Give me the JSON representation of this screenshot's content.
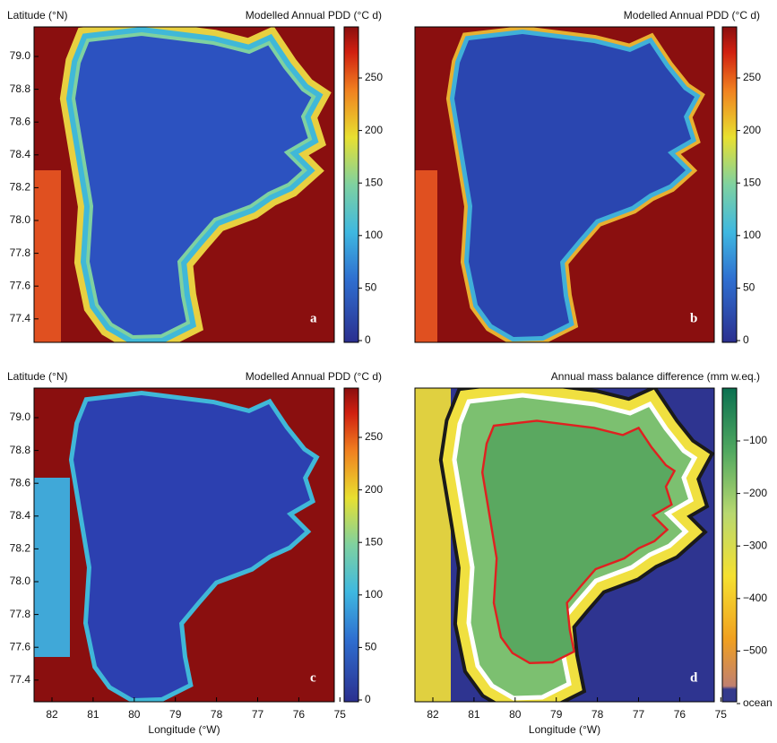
{
  "panels": [
    {
      "y_label": "Latitude (°N)",
      "title": "Modelled Annual PDD (°C d)",
      "letter": "a",
      "lat_ticks": [
        "79.0",
        "78.8",
        "78.6",
        "78.4",
        "78.2",
        "78.0",
        "77.8",
        "77.6",
        "77.4"
      ],
      "colorbar_ticks": [
        "0",
        "50",
        "100",
        "150",
        "200",
        "250"
      ]
    },
    {
      "title": "Modelled Annual PDD (°C d)",
      "letter": "b",
      "colorbar_ticks": [
        "0",
        "50",
        "100",
        "150",
        "200",
        "250"
      ]
    },
    {
      "y_label": "Latitude (°N)",
      "title": "Modelled Annual PDD (°C d)",
      "letter": "c",
      "lat_ticks": [
        "79.0",
        "78.8",
        "78.6",
        "78.4",
        "78.2",
        "78.0",
        "77.8",
        "77.6",
        "77.4"
      ],
      "lon_ticks": [
        "82",
        "81",
        "80",
        "79",
        "78",
        "77",
        "76",
        "75"
      ],
      "x_label": "Longitude (°W)",
      "colorbar_ticks": [
        "0",
        "50",
        "100",
        "150",
        "200",
        "250"
      ]
    },
    {
      "title": "Annual mass balance difference (mm w.eq.)",
      "letter": "d",
      "lon_ticks": [
        "82",
        "81",
        "80",
        "79",
        "78",
        "77",
        "76",
        "75"
      ],
      "x_label": "Longitude (°W)",
      "colorbar_ticks": [
        "−100",
        "−200",
        "−300",
        "−400",
        "−500",
        "ocean"
      ]
    }
  ]
}
